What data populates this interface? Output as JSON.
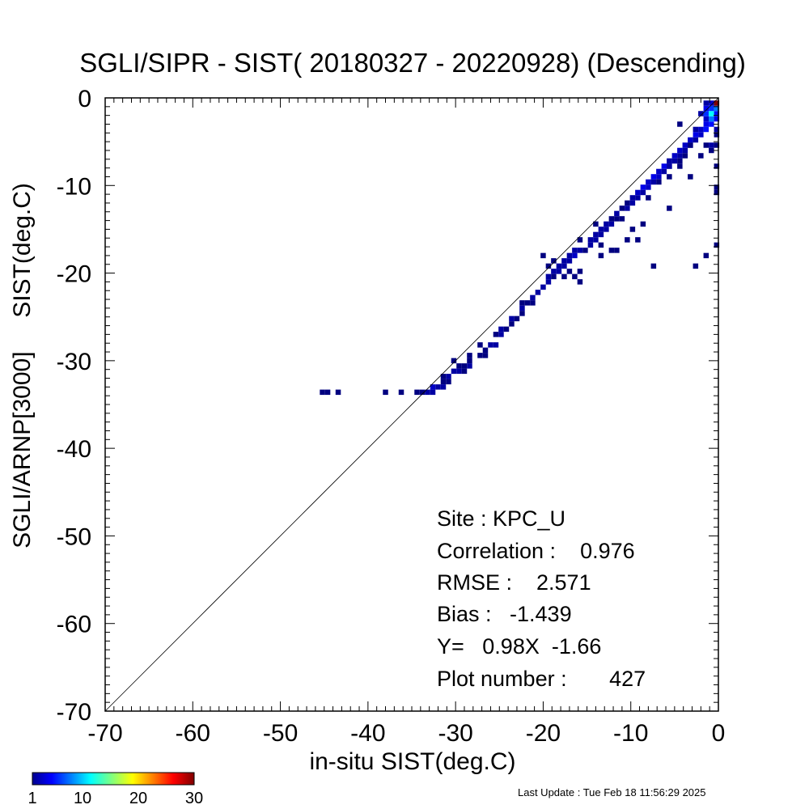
{
  "chart_data": {
    "type": "heatmap",
    "title": "SGLI/SIPR - SIST( 20180327 - 20220928) (Descending)",
    "xlabel": "in-situ SIST(deg.C)",
    "ylabel": "SGLI/ARNP[3000]     SIST(deg.C)",
    "xlim": [
      -70,
      0
    ],
    "ylim": [
      -70,
      0
    ],
    "x_ticks": [
      "-70",
      "-60",
      "-50",
      "-40",
      "-30",
      "-20",
      "-10",
      "0"
    ],
    "y_ticks": [
      "-70",
      "-60",
      "-50",
      "-40",
      "-30",
      "-20",
      "-10",
      "0"
    ],
    "x_tick_values": [
      -70,
      -60,
      -50,
      -40,
      -30,
      -20,
      -10,
      0
    ],
    "y_tick_values": [
      -70,
      -60,
      -50,
      -40,
      -30,
      -20,
      -10,
      0
    ],
    "reference_line": {
      "from": [
        -70,
        -70
      ],
      "to": [
        0,
        0
      ]
    },
    "colorbar": {
      "min": 1,
      "max": 30,
      "ticks": [
        "1",
        "10",
        "20",
        "30"
      ],
      "tick_values": [
        1,
        10,
        20,
        30
      ]
    },
    "stats": {
      "site": "Site : KPC_U",
      "correlation": "Correlation :    0.976",
      "rmse": "RMSE :    2.571",
      "bias": "Bias :   -1.439",
      "fit": "Y=   0.98X  -1.66",
      "plot_number": "Plot number :       427"
    },
    "cell_size": 0.6,
    "cells": [
      [
        -45.2,
        -33.6,
        1
      ],
      [
        -44.6,
        -33.6,
        1
      ],
      [
        -43.4,
        -33.6,
        1
      ],
      [
        -38.0,
        -33.6,
        1
      ],
      [
        -36.2,
        -33.6,
        1
      ],
      [
        -34.4,
        -33.6,
        1
      ],
      [
        -33.8,
        -33.6,
        1
      ],
      [
        -33.2,
        -33.6,
        2
      ],
      [
        -32.6,
        -33.6,
        2
      ],
      [
        -32.6,
        -33.0,
        3
      ],
      [
        -32.0,
        -33.0,
        2
      ],
      [
        -31.4,
        -32.4,
        1
      ],
      [
        -30.8,
        -32.4,
        1
      ],
      [
        -30.8,
        -31.8,
        2
      ],
      [
        -30.2,
        -31.2,
        2
      ],
      [
        -29.6,
        -31.2,
        2
      ],
      [
        -29.0,
        -31.2,
        1
      ],
      [
        -29.6,
        -30.6,
        1
      ],
      [
        -28.4,
        -30.6,
        2
      ],
      [
        -28.4,
        -30.0,
        1
      ],
      [
        -27.2,
        -29.4,
        1
      ],
      [
        -26.6,
        -29.4,
        1
      ],
      [
        -26.6,
        -28.8,
        1
      ],
      [
        -26.0,
        -28.2,
        2
      ],
      [
        -25.4,
        -28.2,
        2
      ],
      [
        -24.8,
        -27.0,
        2
      ],
      [
        -24.8,
        -26.4,
        2
      ],
      [
        -24.2,
        -26.4,
        1
      ],
      [
        -23.6,
        -25.8,
        1
      ],
      [
        -23.6,
        -25.2,
        2
      ],
      [
        -23.0,
        -25.2,
        1
      ],
      [
        -22.4,
        -24.0,
        2
      ],
      [
        -21.8,
        -23.4,
        1
      ],
      [
        -21.2,
        -23.4,
        1
      ],
      [
        -21.2,
        -22.8,
        2
      ],
      [
        -20.6,
        -22.2,
        2
      ],
      [
        -20.0,
        -21.6,
        2
      ],
      [
        -19.4,
        -21.0,
        2
      ],
      [
        -19.4,
        -20.4,
        2
      ],
      [
        -18.8,
        -20.4,
        1
      ],
      [
        -18.8,
        -19.8,
        2
      ],
      [
        -18.2,
        -19.8,
        2
      ],
      [
        -18.2,
        -19.2,
        2
      ],
      [
        -17.6,
        -19.2,
        2
      ],
      [
        -17.6,
        -18.6,
        2
      ],
      [
        -17.0,
        -18.6,
        2
      ],
      [
        -17.0,
        -18.0,
        2
      ],
      [
        -16.4,
        -18.0,
        3
      ],
      [
        -16.4,
        -17.4,
        2
      ],
      [
        -15.8,
        -17.4,
        2
      ],
      [
        -15.2,
        -17.4,
        1
      ],
      [
        -14.6,
        -16.8,
        2
      ],
      [
        -14.6,
        -16.2,
        2
      ],
      [
        -14.0,
        -16.2,
        2
      ],
      [
        -14.0,
        -15.6,
        2
      ],
      [
        -13.4,
        -15.6,
        2
      ],
      [
        -13.4,
        -15.0,
        2
      ],
      [
        -12.8,
        -15.0,
        2
      ],
      [
        -12.8,
        -14.4,
        2
      ],
      [
        -12.2,
        -14.4,
        2
      ],
      [
        -12.2,
        -13.8,
        1
      ],
      [
        -11.6,
        -13.8,
        1
      ],
      [
        -11.6,
        -13.2,
        2
      ],
      [
        -11.0,
        -12.6,
        1
      ],
      [
        -10.4,
        -12.6,
        2
      ],
      [
        -10.4,
        -12.0,
        1
      ],
      [
        -9.8,
        -12.0,
        2
      ],
      [
        -9.8,
        -11.4,
        2
      ],
      [
        -9.2,
        -11.4,
        2
      ],
      [
        -9.2,
        -10.8,
        3
      ],
      [
        -8.6,
        -10.8,
        2
      ],
      [
        -8.6,
        -10.2,
        4
      ],
      [
        -8.0,
        -10.2,
        3
      ],
      [
        -8.0,
        -9.6,
        3
      ],
      [
        -7.4,
        -9.6,
        2
      ],
      [
        -7.4,
        -9.0,
        4
      ],
      [
        -6.8,
        -9.0,
        3
      ],
      [
        -6.8,
        -8.4,
        3
      ],
      [
        -6.2,
        -8.4,
        2
      ],
      [
        -6.2,
        -7.8,
        4
      ],
      [
        -5.6,
        -7.8,
        3
      ],
      [
        -5.6,
        -7.2,
        2
      ],
      [
        -5.0,
        -7.2,
        2
      ],
      [
        -5.0,
        -6.6,
        3
      ],
      [
        -4.4,
        -6.6,
        2
      ],
      [
        -4.4,
        -6.0,
        3
      ],
      [
        -3.8,
        -6.0,
        2
      ],
      [
        -3.8,
        -5.4,
        3
      ],
      [
        -3.2,
        -5.4,
        2
      ],
      [
        -3.2,
        -4.8,
        3
      ],
      [
        -2.6,
        -4.8,
        2
      ],
      [
        -2.6,
        -4.2,
        4
      ],
      [
        -2.0,
        -4.2,
        3
      ],
      [
        -2.0,
        -3.6,
        3
      ],
      [
        -1.4,
        -3.6,
        5
      ],
      [
        -1.4,
        -3.0,
        4
      ],
      [
        -0.8,
        -3.0,
        5
      ],
      [
        -0.8,
        -2.4,
        8
      ],
      [
        -0.2,
        -2.4,
        4
      ],
      [
        -1.4,
        -2.4,
        3
      ],
      [
        -1.4,
        -1.8,
        6
      ],
      [
        -0.8,
        -1.8,
        12
      ],
      [
        -0.2,
        -1.8,
        5
      ],
      [
        -1.4,
        -1.2,
        4
      ],
      [
        -0.8,
        -1.2,
        6
      ],
      [
        -0.2,
        -1.2,
        8
      ],
      [
        -0.8,
        -0.6,
        3
      ],
      [
        -0.2,
        -0.6,
        30
      ],
      [
        -1.4,
        -0.6,
        2
      ],
      [
        -2.0,
        -1.8,
        2
      ],
      [
        -4.4,
        -3.0,
        1
      ],
      [
        -2.6,
        -3.6,
        2
      ],
      [
        -0.2,
        -3.6,
        2
      ],
      [
        -0.2,
        -4.2,
        1
      ],
      [
        -1.4,
        -5.4,
        1
      ],
      [
        -0.8,
        -5.4,
        2
      ],
      [
        -0.2,
        -5.4,
        1
      ],
      [
        -0.8,
        -6.0,
        1
      ],
      [
        -2.0,
        -6.6,
        1
      ],
      [
        -5.6,
        -7.8,
        2
      ],
      [
        -4.4,
        -7.8,
        1
      ],
      [
        -0.2,
        -7.8,
        1
      ],
      [
        -5.6,
        -9.0,
        1
      ],
      [
        -3.2,
        -9.0,
        1
      ],
      [
        -0.2,
        -10.2,
        1
      ],
      [
        -0.2,
        -10.8,
        1
      ],
      [
        -5.6,
        -12.6,
        1
      ],
      [
        -8.6,
        -14.4,
        1
      ],
      [
        -9.8,
        -15.0,
        1
      ],
      [
        -10.4,
        -16.2,
        1
      ],
      [
        -9.2,
        -16.2,
        1
      ],
      [
        -13.4,
        -16.8,
        1
      ],
      [
        -12.2,
        -17.4,
        1
      ],
      [
        -11.6,
        -17.4,
        1
      ],
      [
        -15.8,
        -16.2,
        1
      ],
      [
        -13.4,
        -18.0,
        1
      ],
      [
        -1.4,
        -18.0,
        1
      ],
      [
        -0.2,
        -16.8,
        1
      ],
      [
        -20.0,
        -18.0,
        1
      ],
      [
        -19.4,
        -19.2,
        1
      ],
      [
        -18.8,
        -18.6,
        1
      ],
      [
        -17.0,
        -19.8,
        1
      ],
      [
        -15.8,
        -19.8,
        1
      ],
      [
        -7.4,
        -19.2,
        1
      ],
      [
        -2.6,
        -19.2,
        1
      ],
      [
        -16.4,
        -20.4,
        1
      ],
      [
        -15.8,
        -21.0,
        1
      ],
      [
        -17.6,
        -20.4,
        1
      ],
      [
        -22.4,
        -23.4,
        1
      ],
      [
        -22.4,
        -24.6,
        1
      ],
      [
        -25.4,
        -27.0,
        1
      ],
      [
        -27.2,
        -28.2,
        1
      ],
      [
        -28.4,
        -29.4,
        1
      ],
      [
        -29.0,
        -30.6,
        1
      ],
      [
        -30.2,
        -30.0,
        1
      ],
      [
        -31.4,
        -31.8,
        1
      ],
      [
        -31.4,
        -33.0,
        2
      ],
      [
        -14.0,
        -14.4,
        1
      ],
      [
        -11.0,
        -13.8,
        1
      ],
      [
        -8.0,
        -11.4,
        1
      ],
      [
        -6.8,
        -9.6,
        1
      ],
      [
        -4.4,
        -7.2,
        1
      ],
      [
        -3.8,
        -6.6,
        1
      ],
      [
        -3.2,
        -5.4,
        1
      ]
    ]
  },
  "footer": {
    "last_update": "Last Update : Tue Feb 18 11:56:29 2025"
  }
}
